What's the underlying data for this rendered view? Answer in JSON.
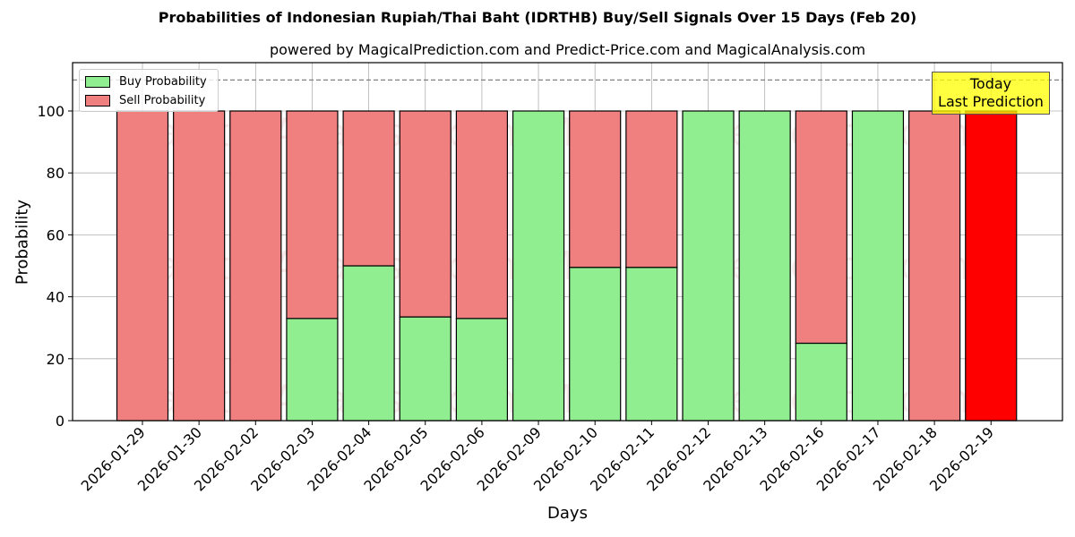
{
  "title": "Probabilities of Indonesian Rupiah/Thai Baht (IDRTHB) Buy/Sell Signals Over 15 Days (Feb 20)",
  "subtitle": "powered by MagicalPrediction.com and Predict-Price.com and MagicalAnalysis.com",
  "legend": {
    "buy_label": "Buy Probability",
    "sell_label": "Sell Probability"
  },
  "annotation": {
    "line1": "Today",
    "line2": "Last Prediction"
  },
  "watermarks": [
    "MagicalAnalysis.com",
    "MagicalPrediction.com"
  ],
  "colors": {
    "buy": "#90ee90",
    "sell": "#f08080",
    "today_sell": "#ff0000",
    "annotation_bg": "#ffff44",
    "grid": "#b0b0b0",
    "threshold_line": "#808080"
  },
  "chart_data": {
    "type": "bar",
    "stacked": true,
    "title": "Probabilities of Indonesian Rupiah/Thai Baht (IDRTHB) Buy/Sell Signals Over 15 Days (Feb 20)",
    "subtitle": "powered by MagicalPrediction.com and Predict-Price.com and MagicalAnalysis.com",
    "xlabel": "Days",
    "ylabel": "Probability",
    "ylim": [
      0,
      115
    ],
    "yticks": [
      0,
      20,
      40,
      60,
      80,
      100
    ],
    "grid": true,
    "legend_position": "upper left",
    "reference_line": {
      "y": 110,
      "style": "dashed"
    },
    "categories": [
      "2026-01-29",
      "2026-01-30",
      "2026-02-02",
      "2026-02-03",
      "2026-02-04",
      "2026-02-05",
      "2026-02-06",
      "2026-02-09",
      "2026-02-10",
      "2026-02-11",
      "2026-02-12",
      "2026-02-13",
      "2026-02-16",
      "2026-02-17",
      "2026-02-18",
      "2026-02-19"
    ],
    "series": [
      {
        "name": "Buy Probability",
        "values": [
          0,
          0,
          0,
          33,
          50,
          33.5,
          33,
          100,
          49.5,
          49.5,
          100,
          100,
          25,
          100,
          0,
          0
        ]
      },
      {
        "name": "Sell Probability",
        "values": [
          100,
          100,
          100,
          67,
          50,
          66.5,
          67,
          0,
          50.5,
          50.5,
          0,
          0,
          75,
          0,
          100,
          100
        ]
      }
    ],
    "highlight": {
      "category": "2026-02-19",
      "label": "Today Last Prediction"
    }
  }
}
